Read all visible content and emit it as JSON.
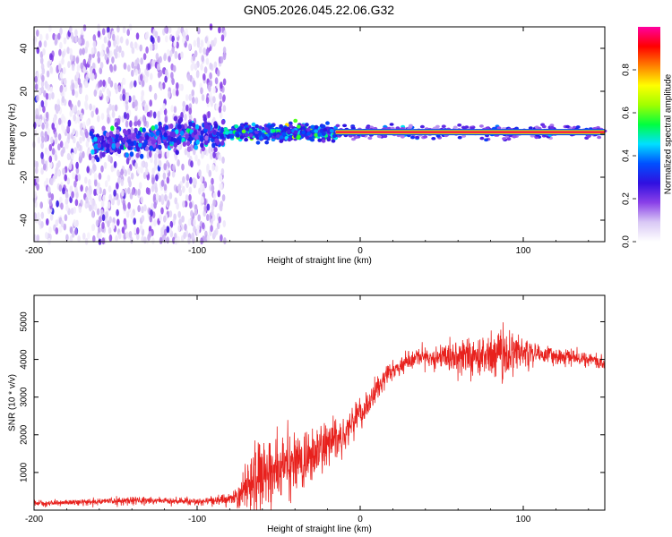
{
  "figure": {
    "title": "GN05.2026.045.22.06.G32"
  },
  "chart_data": [
    {
      "id": "spectrogram",
      "type": "heatmap",
      "title": "",
      "xlabel": "Height of straight line (km)",
      "ylabel": "Frequency (Hz)",
      "xlim": [
        -200,
        150
      ],
      "ylim": [
        -50,
        50
      ],
      "x_ticks": [
        -200,
        -100,
        0,
        100
      ],
      "y_ticks": [
        -40,
        -20,
        0,
        20,
        40
      ],
      "colorbar": {
        "label": "Normalized spectral amplitude",
        "range": [
          0,
          1
        ],
        "ticks": [
          0.0,
          0.2,
          0.4,
          0.6,
          0.8
        ],
        "colormap": [
          "#ffffff",
          "#d9c8f5",
          "#8a40e8",
          "#3010e0",
          "#0050ff",
          "#00e0ff",
          "#00ff40",
          "#a0ff00",
          "#ffff00",
          "#ff8000",
          "#ff0000",
          "#ff00a0"
        ]
      },
      "description_regions": [
        {
          "x_range": [
            -200,
            -83
          ],
          "freq_range": [
            -50,
            50
          ],
          "amplitude": 0.15
        },
        {
          "x_range": [
            -165,
            -83
          ],
          "freq_range": [
            -5,
            4
          ],
          "amplitude": 0.35
        },
        {
          "x_range": [
            -83,
            -15
          ],
          "freq_range": [
            -4,
            4
          ],
          "amplitude": 0.45
        },
        {
          "x_range": [
            -15,
            150
          ],
          "freq_range": [
            -1,
            2
          ],
          "amplitude": 0.95
        }
      ],
      "ridge": {
        "x": [
          -165,
          -140,
          -120,
          -100,
          -80,
          -60,
          -40,
          -20,
          0,
          50,
          100,
          150
        ],
        "freq": [
          -4,
          -3,
          -1,
          0,
          0.5,
          0.5,
          0.5,
          1,
          1,
          1,
          1,
          1
        ]
      }
    },
    {
      "id": "snr",
      "type": "line",
      "title": "",
      "xlabel": "Height of straight line (km)",
      "ylabel": "SNR (10 * v/v)",
      "xlim": [
        -200,
        150
      ],
      "ylim": [
        0,
        5700
      ],
      "x_ticks": [
        -200,
        -100,
        0,
        100
      ],
      "y_ticks": [
        1000,
        2000,
        3000,
        4000,
        5000
      ],
      "series": [
        {
          "color": "#e8211d",
          "x": [
            -200,
            -180,
            -160,
            -140,
            -120,
            -100,
            -85,
            -75,
            -70,
            -65,
            -60,
            -55,
            -50,
            -45,
            -40,
            -35,
            -30,
            -25,
            -20,
            -15,
            -10,
            -5,
            0,
            5,
            10,
            15,
            20,
            25,
            30,
            40,
            50,
            60,
            70,
            80,
            90,
            100,
            110,
            120,
            130,
            140,
            150
          ],
          "values": [
            180,
            200,
            230,
            260,
            250,
            230,
            260,
            320,
            650,
            1000,
            900,
            1050,
            1100,
            1200,
            1300,
            1250,
            1400,
            1550,
            1800,
            1900,
            2050,
            2300,
            2550,
            2800,
            3150,
            3500,
            3700,
            3850,
            3950,
            4050,
            4050,
            4100,
            4100,
            4100,
            4150,
            4200,
            4150,
            4100,
            4050,
            4000,
            3900
          ],
          "noise_amplitude": [
            60,
            60,
            80,
            100,
            80,
            90,
            120,
            250,
            700,
            800,
            800,
            800,
            750,
            700,
            750,
            700,
            650,
            650,
            600,
            500,
            450,
            420,
            380,
            350,
            300,
            250,
            220,
            200,
            200,
            250,
            300,
            400,
            500,
            600,
            650,
            400,
            250,
            200,
            180,
            160,
            160
          ]
        }
      ]
    }
  ]
}
